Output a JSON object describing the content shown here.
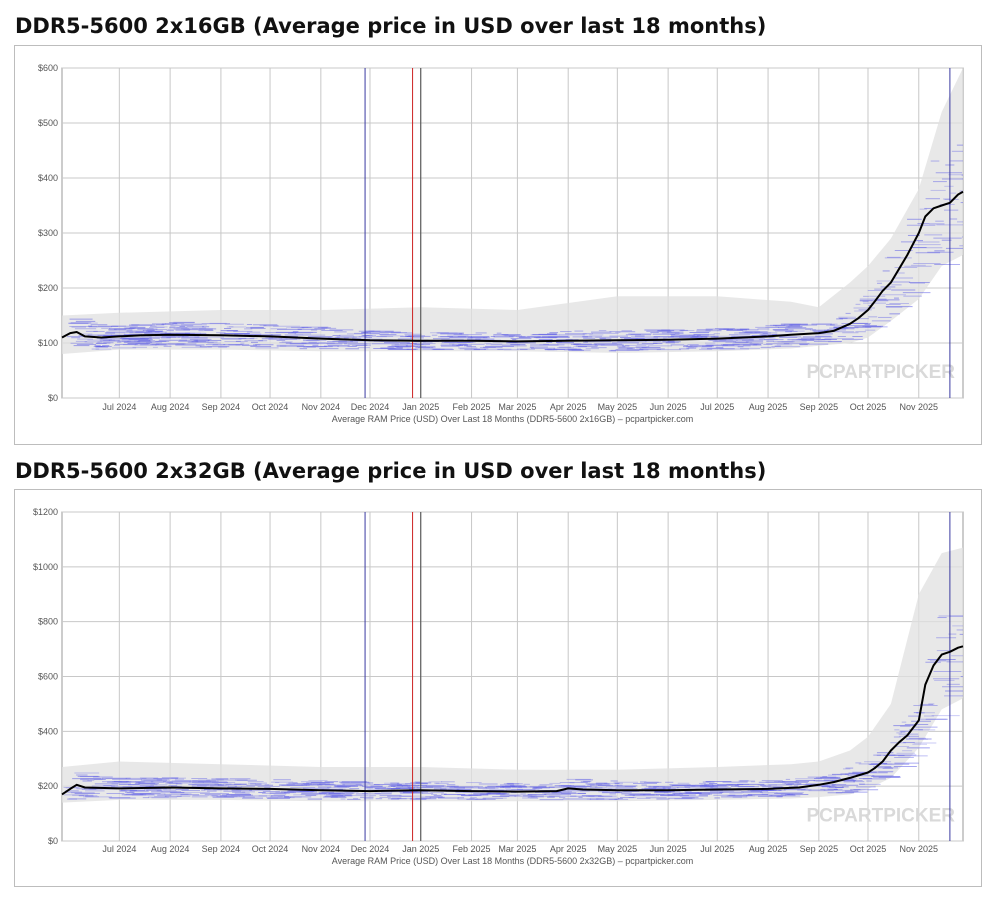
{
  "colors": {
    "price_line": "#000000",
    "band_fill": "#e0e0e0",
    "retailer_segments": "#5a5ae6",
    "marker_blue": "#3a3aa0",
    "marker_red": "#cc2222",
    "marker_black": "#444444",
    "grid": "#c8c8c8"
  },
  "watermark": "PCPARTPICKER",
  "chart_data": [
    {
      "type": "line",
      "title": "DDR5-5600 2x16GB (Average price in USD over last 18 months)",
      "xlabel": "Average RAM Price (USD) Over Last 18 Months (DDR5-5600 2x16GB) – pcpartpicker.com",
      "ylabel": "",
      "x_start": "2024-05-27",
      "x_end": "2025-11-28",
      "x_ticks": [
        {
          "label": "Jul 2024",
          "date": "2024-07-01"
        },
        {
          "label": "Aug 2024",
          "date": "2024-08-01"
        },
        {
          "label": "Sep 2024",
          "date": "2024-09-01"
        },
        {
          "label": "Oct 2024",
          "date": "2024-10-01"
        },
        {
          "label": "Nov 2024",
          "date": "2024-11-01"
        },
        {
          "label": "Dec 2024",
          "date": "2024-12-01"
        },
        {
          "label": "Jan 2025",
          "date": "2025-01-01"
        },
        {
          "label": "Feb 2025",
          "date": "2025-02-01"
        },
        {
          "label": "Mar 2025",
          "date": "2025-03-01"
        },
        {
          "label": "Apr 2025",
          "date": "2025-04-01"
        },
        {
          "label": "May 2025",
          "date": "2025-05-01"
        },
        {
          "label": "Jun 2025",
          "date": "2025-06-01"
        },
        {
          "label": "Jul 2025",
          "date": "2025-07-01"
        },
        {
          "label": "Aug 2025",
          "date": "2025-08-01"
        },
        {
          "label": "Sep 2025",
          "date": "2025-09-01"
        },
        {
          "label": "Oct 2025",
          "date": "2025-10-01"
        },
        {
          "label": "Nov 2025",
          "date": "2025-11-01"
        }
      ],
      "ylim": [
        0,
        600
      ],
      "y_ticks": [
        {
          "label": "$0",
          "value": 0
        },
        {
          "label": "$100",
          "value": 100
        },
        {
          "label": "$200",
          "value": 200
        },
        {
          "label": "$300",
          "value": 300
        },
        {
          "label": "$400",
          "value": 400
        },
        {
          "label": "$500",
          "value": 500
        },
        {
          "label": "$600",
          "value": 600
        }
      ],
      "grid": true,
      "markers": [
        {
          "date": "2024-11-28",
          "color": "#3a3aa0"
        },
        {
          "date": "2024-12-27",
          "color": "#cc2222"
        },
        {
          "date": "2025-01-01",
          "color": "#444444"
        },
        {
          "date": "2025-11-20",
          "color": "#3a3aa0"
        }
      ],
      "series": [
        {
          "x": [
            "2024-05-27",
            "2024-06-01",
            "2024-06-05",
            "2024-06-10",
            "2024-06-20",
            "2024-07-01",
            "2024-07-15",
            "2024-08-01",
            "2024-09-01",
            "2024-10-01",
            "2024-11-01",
            "2024-12-01",
            "2025-01-01",
            "2025-02-01",
            "2025-03-01",
            "2025-04-01",
            "2025-05-01",
            "2025-06-01",
            "2025-07-01",
            "2025-08-01",
            "2025-08-15",
            "2025-09-01",
            "2025-09-10",
            "2025-09-20",
            "2025-09-25",
            "2025-10-01",
            "2025-10-05",
            "2025-10-10",
            "2025-10-15",
            "2025-10-20",
            "2025-10-25",
            "2025-11-01",
            "2025-11-05",
            "2025-11-10",
            "2025-11-15",
            "2025-11-20",
            "2025-11-25",
            "2025-11-28"
          ],
          "values": [
            110,
            118,
            120,
            112,
            110,
            112,
            114,
            115,
            114,
            112,
            108,
            105,
            104,
            104,
            103,
            104,
            105,
            106,
            108,
            112,
            115,
            118,
            122,
            135,
            145,
            160,
            175,
            195,
            210,
            235,
            260,
            300,
            330,
            345,
            350,
            355,
            370,
            375
          ]
        }
      ],
      "band": {
        "x": [
          "2024-05-27",
          "2024-07-01",
          "2024-09-01",
          "2024-11-01",
          "2025-01-01",
          "2025-03-01",
          "2025-05-01",
          "2025-07-01",
          "2025-08-15",
          "2025-09-01",
          "2025-09-20",
          "2025-10-01",
          "2025-10-15",
          "2025-11-01",
          "2025-11-15",
          "2025-11-28"
        ],
        "low": [
          80,
          88,
          88,
          85,
          85,
          85,
          82,
          85,
          90,
          95,
          100,
          110,
          140,
          180,
          240,
          260
        ],
        "high": [
          150,
          155,
          160,
          160,
          165,
          160,
          185,
          185,
          175,
          165,
          210,
          240,
          290,
          380,
          520,
          600
        ]
      }
    },
    {
      "type": "line",
      "title": "DDR5-5600 2x32GB (Average price in USD over last 18 months)",
      "xlabel": "Average RAM Price (USD) Over Last 18 Months (DDR5-5600 2x32GB) – pcpartpicker.com",
      "ylabel": "",
      "x_start": "2024-05-27",
      "x_end": "2025-11-28",
      "x_ticks": [
        {
          "label": "Jul 2024",
          "date": "2024-07-01"
        },
        {
          "label": "Aug 2024",
          "date": "2024-08-01"
        },
        {
          "label": "Sep 2024",
          "date": "2024-09-01"
        },
        {
          "label": "Oct 2024",
          "date": "2024-10-01"
        },
        {
          "label": "Nov 2024",
          "date": "2024-11-01"
        },
        {
          "label": "Dec 2024",
          "date": "2024-12-01"
        },
        {
          "label": "Jan 2025",
          "date": "2025-01-01"
        },
        {
          "label": "Feb 2025",
          "date": "2025-02-01"
        },
        {
          "label": "Mar 2025",
          "date": "2025-03-01"
        },
        {
          "label": "Apr 2025",
          "date": "2025-04-01"
        },
        {
          "label": "May 2025",
          "date": "2025-05-01"
        },
        {
          "label": "Jun 2025",
          "date": "2025-06-01"
        },
        {
          "label": "Jul 2025",
          "date": "2025-07-01"
        },
        {
          "label": "Aug 2025",
          "date": "2025-08-01"
        },
        {
          "label": "Sep 2025",
          "date": "2025-09-01"
        },
        {
          "label": "Oct 2025",
          "date": "2025-10-01"
        },
        {
          "label": "Nov 2025",
          "date": "2025-11-01"
        }
      ],
      "ylim": [
        0,
        1200
      ],
      "y_ticks": [
        {
          "label": "$0",
          "value": 0
        },
        {
          "label": "$200",
          "value": 200
        },
        {
          "label": "$400",
          "value": 400
        },
        {
          "label": "$600",
          "value": 600
        },
        {
          "label": "$800",
          "value": 800
        },
        {
          "label": "$1000",
          "value": 1000
        },
        {
          "label": "$1200",
          "value": 1200
        }
      ],
      "grid": true,
      "markers": [
        {
          "date": "2024-11-28",
          "color": "#3a3aa0"
        },
        {
          "date": "2024-12-27",
          "color": "#cc2222"
        },
        {
          "date": "2025-01-01",
          "color": "#444444"
        },
        {
          "date": "2025-11-20",
          "color": "#3a3aa0"
        }
      ],
      "series": [
        {
          "x": [
            "2024-05-27",
            "2024-06-01",
            "2024-06-05",
            "2024-06-10",
            "2024-07-01",
            "2024-08-01",
            "2024-09-01",
            "2024-10-01",
            "2024-11-01",
            "2024-12-01",
            "2025-01-01",
            "2025-02-01",
            "2025-03-01",
            "2025-03-25",
            "2025-04-01",
            "2025-04-10",
            "2025-05-01",
            "2025-06-01",
            "2025-07-01",
            "2025-08-01",
            "2025-08-20",
            "2025-09-01",
            "2025-09-10",
            "2025-09-20",
            "2025-10-01",
            "2025-10-05",
            "2025-10-10",
            "2025-10-15",
            "2025-10-20",
            "2025-10-25",
            "2025-11-01",
            "2025-11-05",
            "2025-11-10",
            "2025-11-15",
            "2025-11-20",
            "2025-11-25",
            "2025-11-28"
          ],
          "values": [
            170,
            190,
            205,
            195,
            192,
            195,
            192,
            190,
            185,
            182,
            185,
            182,
            180,
            182,
            192,
            188,
            185,
            185,
            188,
            190,
            195,
            205,
            215,
            230,
            250,
            265,
            290,
            330,
            360,
            385,
            440,
            570,
            640,
            680,
            690,
            705,
            710
          ]
        }
      ],
      "band": {
        "x": [
          "2024-05-27",
          "2024-07-01",
          "2024-09-01",
          "2024-11-01",
          "2025-01-01",
          "2025-03-01",
          "2025-05-01",
          "2025-07-01",
          "2025-08-15",
          "2025-09-01",
          "2025-09-20",
          "2025-10-01",
          "2025-10-15",
          "2025-11-01",
          "2025-11-15",
          "2025-11-28"
        ],
        "low": [
          140,
          150,
          150,
          145,
          145,
          145,
          145,
          150,
          155,
          160,
          170,
          190,
          230,
          340,
          480,
          520
        ],
        "high": [
          270,
          290,
          280,
          270,
          270,
          260,
          260,
          270,
          280,
          290,
          330,
          380,
          500,
          900,
          1050,
          1070
        ]
      }
    }
  ]
}
